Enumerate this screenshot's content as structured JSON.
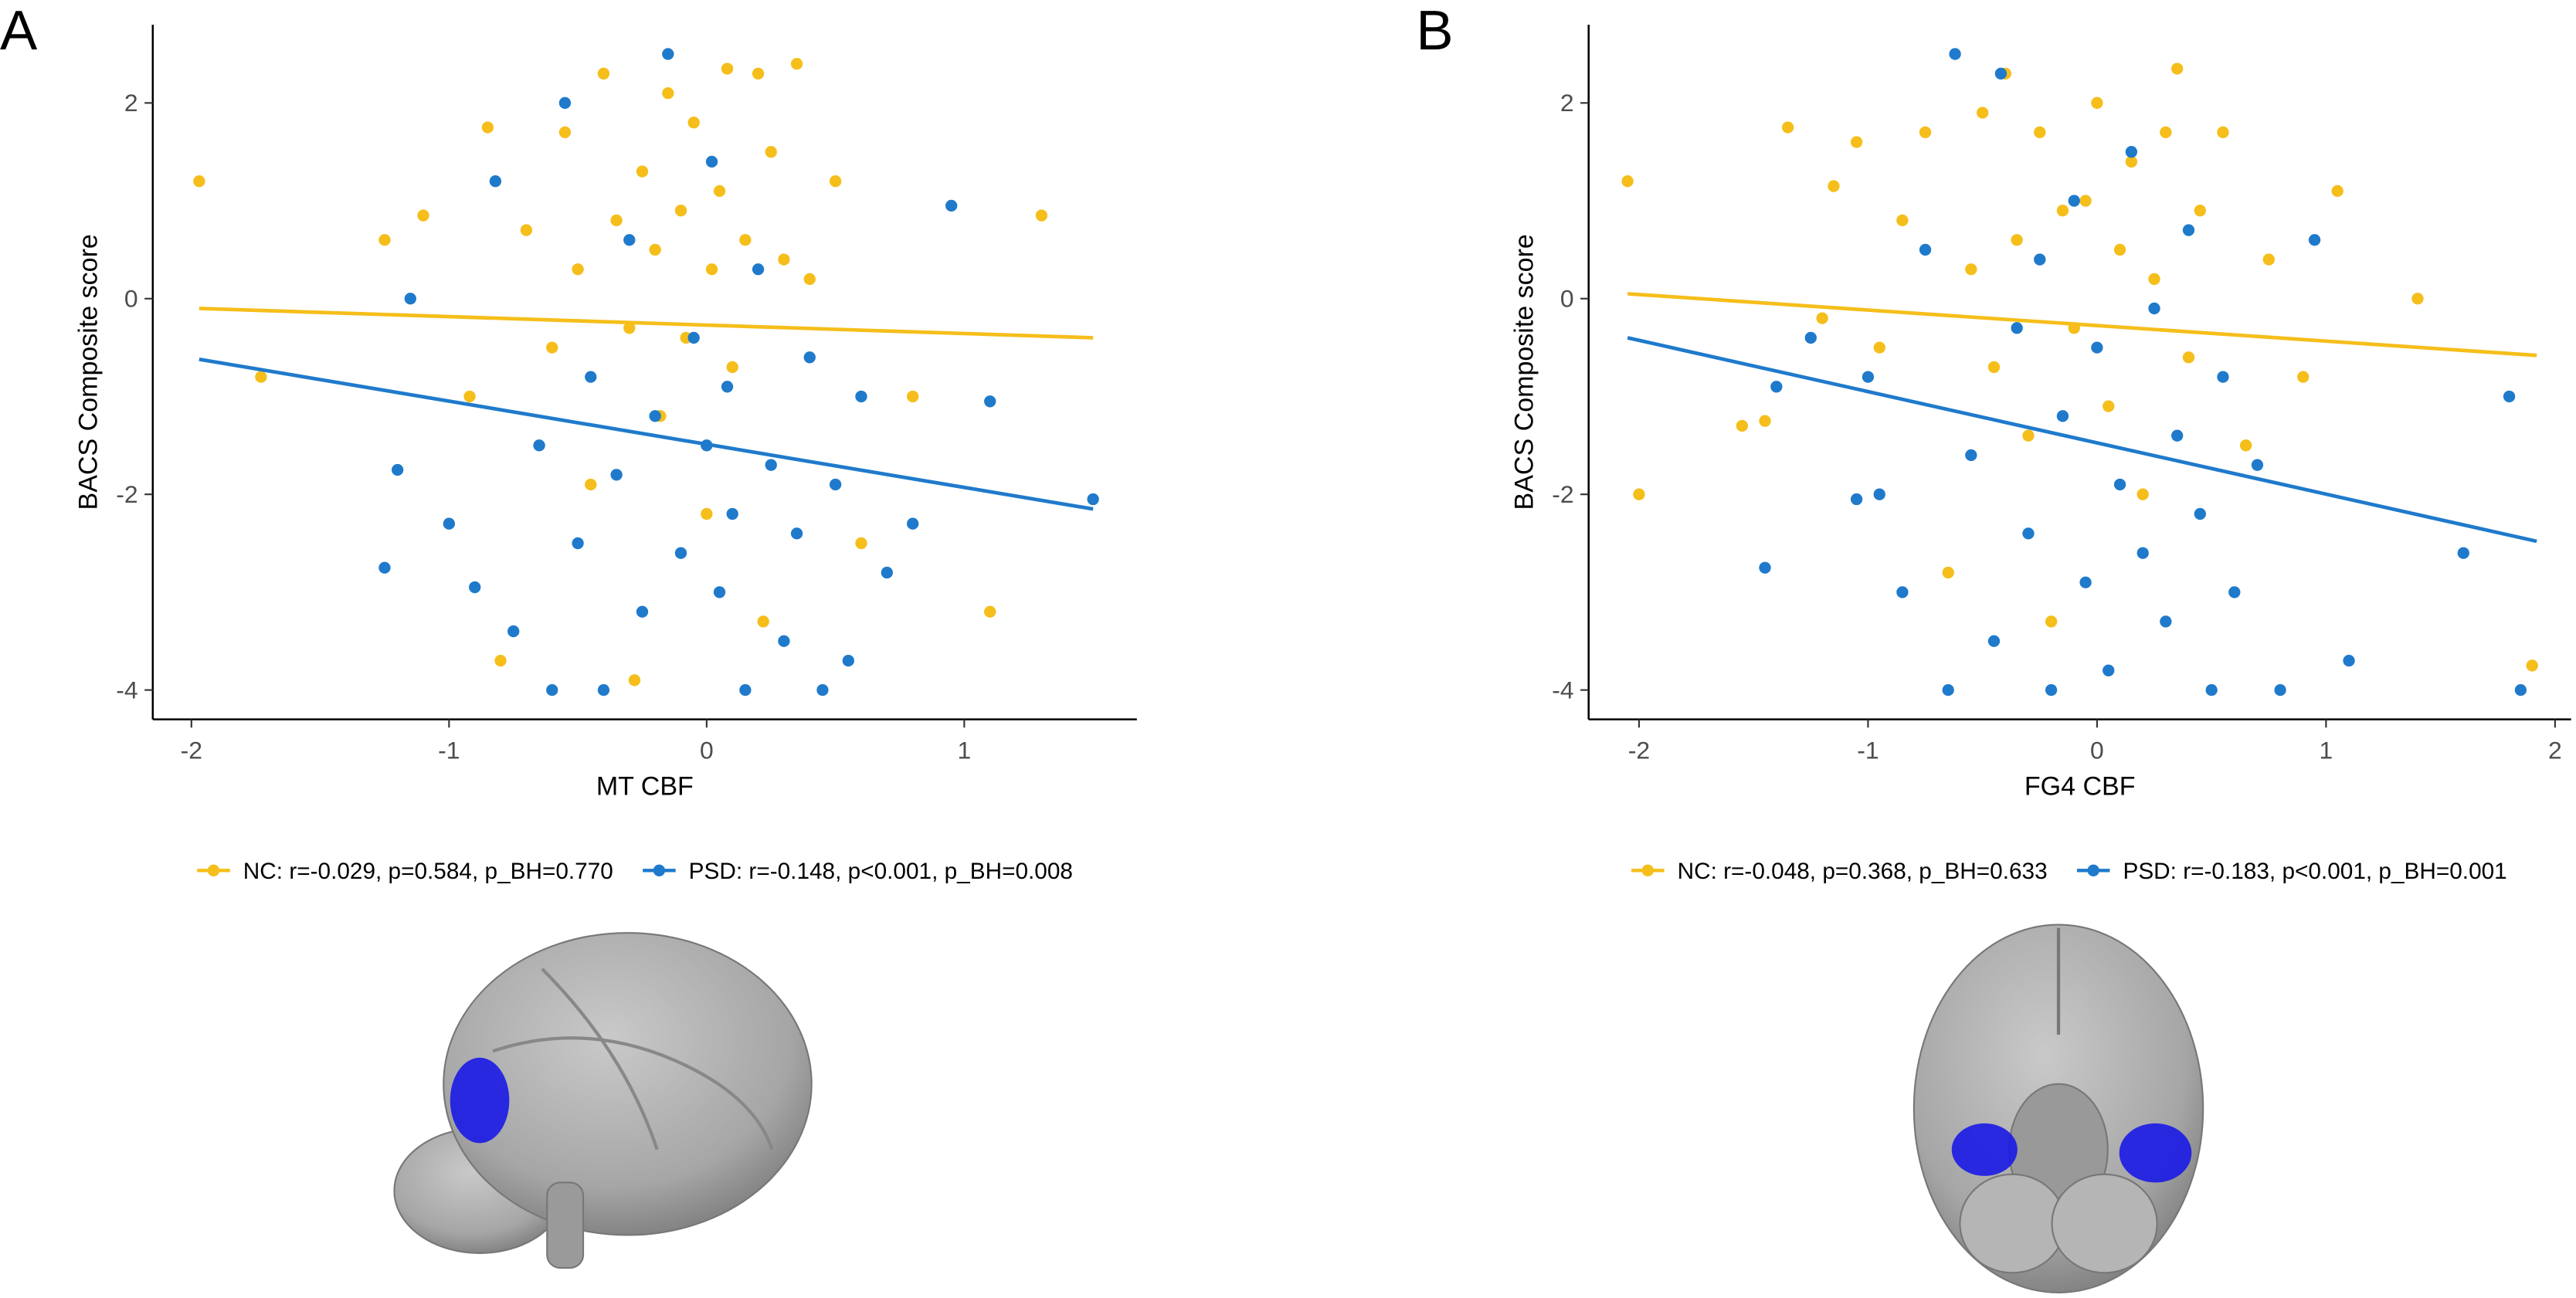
{
  "chart_data": [
    {
      "panel_label": "A",
      "type": "scatter",
      "x_label": "MT CBF",
      "y_label": "BACS Composite score",
      "xlim": [
        -2.15,
        1.67
      ],
      "ylim": [
        -4.3,
        2.8
      ],
      "xticks": [
        -2,
        -1,
        0,
        1
      ],
      "yticks": [
        -4,
        -2,
        0,
        2
      ],
      "legend_position": "bottom",
      "series": [
        {
          "name": "NC: r=-0.029, p=0.584, p_BH=0.770",
          "color": "#f5be1a",
          "x": [
            -1.97,
            -1.73,
            -1.25,
            -1.1,
            -0.92,
            -0.85,
            -0.8,
            -0.7,
            -0.6,
            -0.55,
            -0.5,
            -0.45,
            -0.4,
            -0.35,
            -0.3,
            -0.28,
            -0.25,
            -0.2,
            -0.18,
            -0.15,
            -0.1,
            -0.08,
            -0.05,
            0.0,
            0.02,
            0.05,
            0.08,
            0.1,
            0.15,
            0.2,
            0.22,
            0.25,
            0.3,
            0.35,
            0.4,
            0.5,
            0.6,
            0.8,
            1.1,
            1.3
          ],
          "values": [
            1.2,
            -0.8,
            0.6,
            0.85,
            -1.0,
            1.75,
            -3.7,
            0.7,
            -0.5,
            1.7,
            0.3,
            -1.9,
            2.3,
            0.8,
            -0.3,
            -3.9,
            1.3,
            0.5,
            -1.2,
            2.1,
            0.9,
            -0.4,
            1.8,
            -2.2,
            0.3,
            1.1,
            2.35,
            -0.7,
            0.6,
            2.3,
            -3.3,
            1.5,
            0.4,
            2.4,
            0.2,
            1.2,
            -2.5,
            -1.0,
            -3.2,
            0.85
          ],
          "trend": {
            "x": [
              -1.97,
              1.5
            ],
            "y": [
              -0.1,
              -0.4
            ]
          }
        },
        {
          "name": "PSD: r=-0.148, p<0.001, p_BH=0.008",
          "color": "#1f7acb",
          "x": [
            -1.25,
            -1.2,
            -1.15,
            -1.0,
            -0.9,
            -0.82,
            -0.75,
            -0.65,
            -0.6,
            -0.55,
            -0.5,
            -0.45,
            -0.4,
            -0.35,
            -0.3,
            -0.25,
            -0.2,
            -0.15,
            -0.1,
            -0.05,
            0.0,
            0.02,
            0.05,
            0.08,
            0.1,
            0.15,
            0.2,
            0.25,
            0.3,
            0.35,
            0.4,
            0.45,
            0.5,
            0.55,
            0.6,
            0.7,
            0.8,
            0.95,
            1.1,
            1.5
          ],
          "values": [
            -2.75,
            -1.75,
            0.0,
            -2.3,
            -2.95,
            1.2,
            -3.4,
            -1.5,
            -4.0,
            2.0,
            -2.5,
            -0.8,
            -4.0,
            -1.8,
            0.6,
            -3.2,
            -1.2,
            2.5,
            -2.6,
            -0.4,
            -1.5,
            1.4,
            -3.0,
            -0.9,
            -2.2,
            -4.0,
            0.3,
            -1.7,
            -3.5,
            -2.4,
            -0.6,
            -4.0,
            -1.9,
            -3.7,
            -1.0,
            -2.8,
            -2.3,
            0.95,
            -1.05,
            -2.05
          ],
          "trend": {
            "x": [
              -1.97,
              1.5
            ],
            "y": [
              -0.62,
              -2.15
            ]
          }
        }
      ]
    },
    {
      "panel_label": "B",
      "type": "scatter",
      "x_label": "FG4 CBF",
      "y_label": "BACS Composite score",
      "xlim": [
        -2.22,
        2.07
      ],
      "ylim": [
        -4.3,
        2.8
      ],
      "xticks": [
        -2,
        -1,
        0,
        1,
        2
      ],
      "yticks": [
        -4,
        -2,
        0,
        2
      ],
      "legend_position": "bottom",
      "series": [
        {
          "name": "NC: r=-0.048, p=0.368, p_BH=0.633",
          "color": "#f5be1a",
          "x": [
            -2.05,
            -2.0,
            -1.55,
            -1.45,
            -1.35,
            -1.2,
            -1.15,
            -1.05,
            -0.95,
            -0.85,
            -0.75,
            -0.65,
            -0.55,
            -0.5,
            -0.45,
            -0.4,
            -0.35,
            -0.3,
            -0.25,
            -0.2,
            -0.15,
            -0.1,
            -0.05,
            0.0,
            0.05,
            0.1,
            0.15,
            0.2,
            0.25,
            0.3,
            0.35,
            0.4,
            0.45,
            0.55,
            0.65,
            0.75,
            0.9,
            1.05,
            1.4,
            1.9
          ],
          "values": [
            1.2,
            -2.0,
            -1.3,
            -1.25,
            1.75,
            -0.2,
            1.15,
            1.6,
            -0.5,
            0.8,
            1.7,
            -2.8,
            0.3,
            1.9,
            -0.7,
            2.3,
            0.6,
            -1.4,
            1.7,
            -3.3,
            0.9,
            -0.3,
            1.0,
            2.0,
            -1.1,
            0.5,
            1.4,
            -2.0,
            0.2,
            1.7,
            2.35,
            -0.6,
            0.9,
            1.7,
            -1.5,
            0.4,
            -0.8,
            1.1,
            0.0,
            -3.75
          ],
          "trend": {
            "x": [
              -2.05,
              1.92
            ],
            "y": [
              0.05,
              -0.58
            ]
          }
        },
        {
          "name": "PSD: r=-0.183, p<0.001, p_BH=0.001",
          "color": "#1f7acb",
          "x": [
            -1.45,
            -1.4,
            -1.25,
            -1.05,
            -1.0,
            -0.95,
            -0.85,
            -0.75,
            -0.65,
            -0.62,
            -0.55,
            -0.45,
            -0.42,
            -0.35,
            -0.3,
            -0.25,
            -0.2,
            -0.15,
            -0.1,
            -0.05,
            0.0,
            0.05,
            0.1,
            0.15,
            0.2,
            0.25,
            0.3,
            0.35,
            0.4,
            0.45,
            0.5,
            0.55,
            0.6,
            0.7,
            0.8,
            0.95,
            1.1,
            1.6,
            1.8,
            1.85
          ],
          "values": [
            -2.75,
            -0.9,
            -0.4,
            -2.05,
            -0.8,
            -2.0,
            -3.0,
            0.5,
            -4.0,
            2.5,
            -1.6,
            -3.5,
            2.3,
            -0.3,
            -2.4,
            0.4,
            -4.0,
            -1.2,
            1.0,
            -2.9,
            -0.5,
            -3.8,
            -1.9,
            1.5,
            -2.6,
            -0.1,
            -3.3,
            -1.4,
            0.7,
            -2.2,
            -4.0,
            -0.8,
            -3.0,
            -1.7,
            -4.0,
            0.6,
            -3.7,
            -2.6,
            -1.0,
            -4.0
          ],
          "trend": {
            "x": [
              -2.05,
              1.92
            ],
            "y": [
              -0.4,
              -2.48
            ]
          }
        }
      ]
    }
  ]
}
